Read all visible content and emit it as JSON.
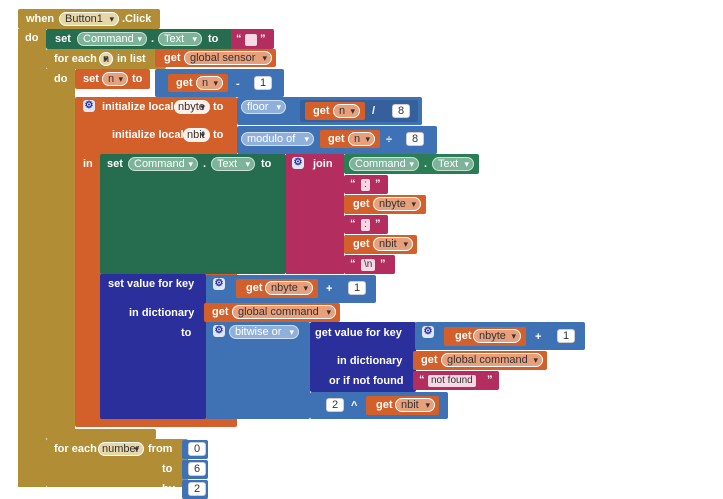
{
  "event": {
    "when": "when",
    "component": "Button1",
    "event": ".Click",
    "do": "do"
  },
  "set_label": "set",
  "to_label": "to",
  "dot": ".",
  "component_command": "Command",
  "prop_text": "Text",
  "empty_text_open": "“",
  "empty_text_close": "”",
  "foreach_list": {
    "for_each": "for each",
    "var": "n",
    "in_list": "in list",
    "get": "get",
    "source": "global sensor",
    "do": "do"
  },
  "set_n": {
    "set": "set",
    "var": "n",
    "to": "to",
    "get": "get",
    "getvar": "n",
    "op": "-",
    "num": "1"
  },
  "local1": {
    "label": "initialize local",
    "var": "nbyte",
    "to": "to",
    "fn": "floor",
    "get": "get",
    "getvar": "n",
    "op": "/",
    "num": "8"
  },
  "local2": {
    "label": "initialize local",
    "var": "nbit",
    "to": "to",
    "fn": "modulo of",
    "get": "get",
    "getvar": "n",
    "op": "÷",
    "num": "8"
  },
  "in_label": "in",
  "join_label": "join",
  "join_items": {
    "s1": ":",
    "g1": "nbyte",
    "s2": ":",
    "g2": "nbit",
    "s3": "\\n",
    "get": "get"
  },
  "set_value": {
    "label": "set value for key",
    "get": "get",
    "getvar": "nbyte",
    "op": "+",
    "num": "1",
    "in_dict": "in dictionary",
    "dict_get": "get",
    "dict": "global command",
    "to": "to"
  },
  "bitwise": {
    "fn": "bitwise or",
    "gv_label": "get value for key",
    "get": "get",
    "getvar": "nbyte",
    "op": "+",
    "num": "1",
    "in_dict": "in dictionary",
    "dict_get": "get",
    "dict": "global command",
    "not_found": "or if not found",
    "nf_val": "not found",
    "pow_num": "2",
    "pow_op": "^",
    "pow_get": "get",
    "pow_var": "nbit"
  },
  "foreach_number": {
    "for_each": "for each",
    "var": "number",
    "from": "from",
    "from_val": "0",
    "to": "to",
    "to_val": "6",
    "by": "by",
    "by_val": "2"
  },
  "colors": {
    "event": "#b18e35",
    "set_text": "#266d4f",
    "variables": "#d35f2a",
    "math": "#3f71b5",
    "text": "#b32d5e",
    "dictionary": "#2a2f9c"
  }
}
